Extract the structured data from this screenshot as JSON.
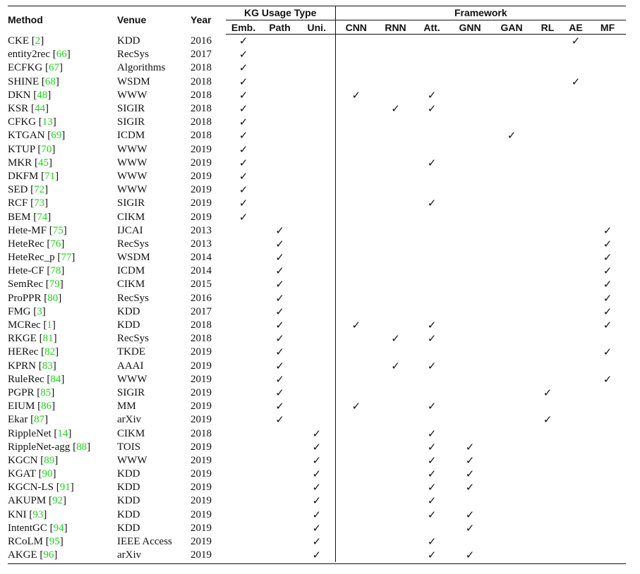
{
  "headers": {
    "method": "Method",
    "venue": "Venue",
    "year": "Year",
    "kg_usage": "KG Usage Type",
    "framework": "Framework",
    "kg_cols": [
      "Emb.",
      "Path",
      "Uni."
    ],
    "fw_cols": [
      "CNN",
      "RNN",
      "Att.",
      "GNN",
      "GAN",
      "RL",
      "AE",
      "MF"
    ]
  },
  "check_glyph": "✓",
  "cite_color": "#1fd11f",
  "rows": [
    {
      "name": "CKE",
      "ref": "2",
      "venue": "KDD",
      "year": "2016",
      "kg": "Emb.",
      "fw": [
        "AE"
      ]
    },
    {
      "name": "entity2rec",
      "ref": "66",
      "venue": "RecSys",
      "year": "2017",
      "kg": "Emb.",
      "fw": []
    },
    {
      "name": "ECFKG",
      "ref": "67",
      "venue": "Algorithms",
      "year": "2018",
      "kg": "Emb.",
      "fw": []
    },
    {
      "name": "SHINE",
      "ref": "68",
      "venue": "WSDM",
      "year": "2018",
      "kg": "Emb.",
      "fw": [
        "AE"
      ]
    },
    {
      "name": "DKN",
      "ref": "48",
      "venue": "WWW",
      "year": "2018",
      "kg": "Emb.",
      "fw": [
        "CNN",
        "Att."
      ]
    },
    {
      "name": "KSR",
      "ref": "44",
      "venue": "SIGIR",
      "year": "2018",
      "kg": "Emb.",
      "fw": [
        "RNN",
        "Att."
      ]
    },
    {
      "name": "CFKG",
      "ref": "13",
      "venue": "SIGIR",
      "year": "2018",
      "kg": "Emb.",
      "fw": []
    },
    {
      "name": "KTGAN",
      "ref": "69",
      "venue": "ICDM",
      "year": "2018",
      "kg": "Emb.",
      "fw": [
        "GAN"
      ]
    },
    {
      "name": "KTUP",
      "ref": "70",
      "venue": "WWW",
      "year": "2019",
      "kg": "Emb.",
      "fw": []
    },
    {
      "name": "MKR",
      "ref": "45",
      "venue": "WWW",
      "year": "2019",
      "kg": "Emb.",
      "fw": [
        "Att."
      ]
    },
    {
      "name": "DKFM",
      "ref": "71",
      "venue": "WWW",
      "year": "2019",
      "kg": "Emb.",
      "fw": []
    },
    {
      "name": "SED",
      "ref": "72",
      "venue": "WWW",
      "year": "2019",
      "kg": "Emb.",
      "fw": []
    },
    {
      "name": "RCF",
      "ref": "73",
      "venue": "SIGIR",
      "year": "2019",
      "kg": "Emb.",
      "fw": [
        "Att."
      ]
    },
    {
      "name": "BEM",
      "ref": "74",
      "venue": "CIKM",
      "year": "2019",
      "kg": "Emb.",
      "fw": []
    },
    {
      "name": "Hete-MF",
      "ref": "75",
      "venue": "IJCAI",
      "year": "2013",
      "kg": "Path",
      "fw": [
        "MF"
      ]
    },
    {
      "name": "HeteRec",
      "ref": "76",
      "venue": "RecSys",
      "year": "2013",
      "kg": "Path",
      "fw": [
        "MF"
      ]
    },
    {
      "name": "HeteRec_p",
      "ref": "77",
      "venue": "WSDM",
      "year": "2014",
      "kg": "Path",
      "fw": [
        "MF"
      ]
    },
    {
      "name": "Hete-CF",
      "ref": "78",
      "venue": "ICDM",
      "year": "2014",
      "kg": "Path",
      "fw": [
        "MF"
      ]
    },
    {
      "name": "SemRec",
      "ref": "79",
      "venue": "CIKM",
      "year": "2015",
      "kg": "Path",
      "fw": [
        "MF"
      ]
    },
    {
      "name": "ProPPR",
      "ref": "80",
      "venue": "RecSys",
      "year": "2016",
      "kg": "Path",
      "fw": [
        "MF"
      ]
    },
    {
      "name": "FMG",
      "ref": "3",
      "venue": "KDD",
      "year": "2017",
      "kg": "Path",
      "fw": [
        "MF"
      ]
    },
    {
      "name": "MCRec",
      "ref": "1",
      "venue": "KDD",
      "year": "2018",
      "kg": "Path",
      "fw": [
        "CNN",
        "Att.",
        "MF"
      ]
    },
    {
      "name": "RKGE",
      "ref": "81",
      "venue": "RecSys",
      "year": "2018",
      "kg": "Path",
      "fw": [
        "RNN",
        "Att."
      ]
    },
    {
      "name": "HERec",
      "ref": "82",
      "venue": "TKDE",
      "year": "2019",
      "kg": "Path",
      "fw": [
        "MF"
      ]
    },
    {
      "name": "KPRN",
      "ref": "83",
      "venue": "AAAI",
      "year": "2019",
      "kg": "Path",
      "fw": [
        "RNN",
        "Att."
      ]
    },
    {
      "name": "RuleRec",
      "ref": "84",
      "venue": "WWW",
      "year": "2019",
      "kg": "Path",
      "fw": [
        "MF"
      ]
    },
    {
      "name": "PGPR",
      "ref": "85",
      "venue": "SIGIR",
      "year": "2019",
      "kg": "Path",
      "fw": [
        "RL"
      ]
    },
    {
      "name": "EIUM",
      "ref": "86",
      "venue": "MM",
      "year": "2019",
      "kg": "Path",
      "fw": [
        "CNN",
        "Att."
      ]
    },
    {
      "name": "Ekar",
      "ref": "87",
      "venue": "arXiv",
      "year": "2019",
      "kg": "Path",
      "fw": [
        "RL"
      ]
    },
    {
      "name": "RippleNet",
      "ref": "14",
      "venue": "CIKM",
      "year": "2018",
      "kg": "Uni.",
      "fw": [
        "Att."
      ]
    },
    {
      "name": "RippleNet-agg",
      "ref": "88",
      "venue": "TOIS",
      "year": "2019",
      "kg": "Uni.",
      "fw": [
        "Att.",
        "GNN"
      ]
    },
    {
      "name": "KGCN",
      "ref": "89",
      "venue": "WWW",
      "year": "2019",
      "kg": "Uni.",
      "fw": [
        "Att.",
        "GNN"
      ]
    },
    {
      "name": "KGAT",
      "ref": "90",
      "venue": "KDD",
      "year": "2019",
      "kg": "Uni.",
      "fw": [
        "Att.",
        "GNN"
      ]
    },
    {
      "name": "KGCN-LS",
      "ref": "91",
      "venue": "KDD",
      "year": "2019",
      "kg": "Uni.",
      "fw": [
        "Att.",
        "GNN"
      ]
    },
    {
      "name": "AKUPM",
      "ref": "92",
      "venue": "KDD",
      "year": "2019",
      "kg": "Uni.",
      "fw": [
        "Att."
      ]
    },
    {
      "name": "KNI",
      "ref": "93",
      "venue": "KDD",
      "year": "2019",
      "kg": "Uni.",
      "fw": [
        "Att.",
        "GNN"
      ]
    },
    {
      "name": "IntentGC",
      "ref": "94",
      "venue": "KDD",
      "year": "2019",
      "kg": "Uni.",
      "fw": [
        "GNN"
      ]
    },
    {
      "name": "RCoLM",
      "ref": "95",
      "venue": "IEEE Access",
      "year": "2019",
      "kg": "Uni.",
      "fw": [
        "Att."
      ]
    },
    {
      "name": "AKGE",
      "ref": "96",
      "venue": "arXiv",
      "year": "2019",
      "kg": "Uni.",
      "fw": [
        "Att.",
        "GNN"
      ]
    }
  ]
}
